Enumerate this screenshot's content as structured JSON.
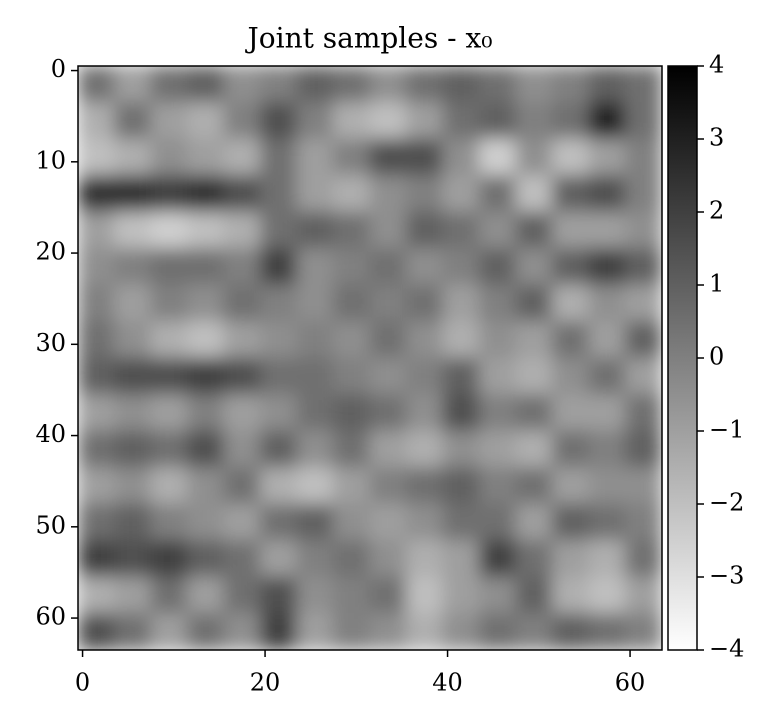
{
  "chart_data": {
    "type": "heatmap",
    "title": "Joint samples - x₀",
    "colormap": "gray_r",
    "clim": [
      -4,
      4
    ],
    "xlim": [
      -0.5,
      63.5
    ],
    "ylim": [
      63.5,
      -0.5
    ],
    "xticks": [
      0,
      20,
      40,
      60
    ],
    "yticks": [
      0,
      10,
      20,
      30,
      40,
      50,
      60
    ],
    "cticks": [
      {
        "value": -4,
        "label": "−4"
      },
      {
        "value": -3,
        "label": "−3"
      },
      {
        "value": -2,
        "label": "−2"
      },
      {
        "value": -1,
        "label": "−1"
      },
      0,
      1,
      2,
      3,
      4
    ],
    "values": [
      [
        0.5,
        -1,
        0.5,
        1,
        -0.5,
        0,
        1,
        0.5,
        -0.5,
        0.5,
        1,
        0.5,
        -0.5,
        0,
        1,
        0.5
      ],
      [
        -1.5,
        0.5,
        -1,
        -1.5,
        0,
        1.5,
        0,
        -1.5,
        -2,
        -1,
        0.5,
        1,
        0,
        0.5,
        3,
        0.5
      ],
      [
        -2,
        -1.5,
        -0.5,
        -1,
        -1.5,
        0.5,
        -1,
        0,
        1.5,
        1.5,
        -0.5,
        -2.5,
        -0.5,
        -2,
        -1,
        0
      ],
      [
        2.5,
        2.5,
        2,
        2.5,
        1.5,
        0.5,
        -1,
        -1.5,
        -0.5,
        0,
        -1,
        0.5,
        -2,
        1,
        1.5,
        0
      ],
      [
        -1,
        -2,
        -2.5,
        -2,
        -1.5,
        0.5,
        1,
        0.5,
        -0.5,
        1,
        0.5,
        -0.5,
        1,
        -1,
        -1,
        -0.5
      ],
      [
        -0.5,
        0,
        0.5,
        0.5,
        0,
        2,
        -0.5,
        0,
        0.5,
        -0.5,
        0,
        1,
        -0.5,
        1,
        2,
        1
      ],
      [
        0,
        -1,
        0,
        -0.5,
        0.5,
        0,
        -0.5,
        0.5,
        0,
        0.5,
        -1,
        0,
        1,
        -1.5,
        -0.5,
        -1
      ],
      [
        0.5,
        -0.5,
        -1.5,
        -2,
        -1,
        -0.5,
        0,
        -0.5,
        0.5,
        -0.5,
        -1.5,
        -0.5,
        -1,
        0.5,
        -1,
        1
      ],
      [
        1,
        1.5,
        1.5,
        2,
        1.5,
        0.5,
        0.5,
        0,
        -0.5,
        0,
        1,
        -1,
        -1.5,
        -0.5,
        0.5,
        -1
      ],
      [
        -1,
        -0.5,
        -1,
        0,
        -1,
        -0.5,
        0.5,
        1,
        0.5,
        -0.5,
        1.5,
        0,
        0.5,
        -1,
        -1,
        0.5
      ],
      [
        0.5,
        1,
        0.5,
        1.5,
        -0.5,
        1,
        -0.5,
        0.5,
        -1,
        -1.5,
        -0.5,
        -1,
        -1.5,
        0.5,
        0,
        1
      ],
      [
        -1,
        -0.5,
        -1.5,
        -0.5,
        0.5,
        -1.5,
        -2,
        -1,
        0,
        0.5,
        1,
        0,
        0.5,
        -1,
        -0.5,
        -0.5
      ],
      [
        0.5,
        1,
        0,
        -0.5,
        -1,
        0.5,
        1,
        -0.5,
        -1,
        -0.5,
        0.5,
        0.5,
        -1,
        1,
        0.5,
        0
      ],
      [
        2,
        1.5,
        2,
        1,
        0.5,
        -1,
        0,
        0.5,
        -0.5,
        -1.5,
        -1,
        2,
        0.5,
        -1,
        -1.5,
        0.5
      ],
      [
        -1.5,
        -1,
        0.5,
        -1,
        0.5,
        1.5,
        -0.5,
        0,
        0.5,
        -2,
        -1,
        -0.5,
        1,
        -1.5,
        -2,
        -1
      ],
      [
        1.5,
        0.5,
        -1,
        0.5,
        -0.5,
        2,
        -1,
        0,
        -0.5,
        -1.5,
        -0.5,
        0.5,
        0,
        1,
        0.5,
        0
      ]
    ]
  }
}
